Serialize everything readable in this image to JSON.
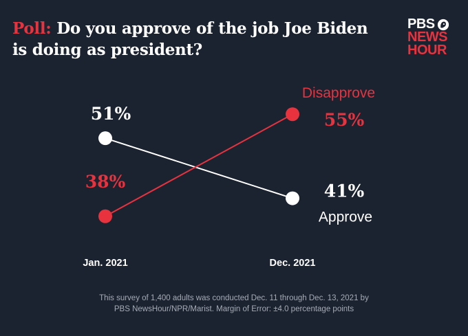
{
  "header": {
    "title_prefix": "Poll:",
    "title_rest": " Do you approve of the job Joe Biden is doing as president?"
  },
  "logo": {
    "line1": "PBS",
    "line2": "NEWS",
    "line3": "HOUR",
    "icon": "pbs-head-icon"
  },
  "footnote": {
    "line1": "This survey of 1,400 adults was conducted Dec. 11 through Dec. 13, 2021 by",
    "line2": "PBS NewsHour/NPR/Marist. Margin of Error: ±4.0 percentage points"
  },
  "colors": {
    "background": "#1b2230",
    "disapprove": "#e8333f",
    "approve": "#ffffff"
  },
  "chart_data": {
    "type": "line",
    "categories": [
      "Jan. 2021",
      "Dec. 2021"
    ],
    "series": [
      {
        "name": "Approve",
        "values": [
          51,
          41
        ],
        "labels": [
          "51%",
          "41%"
        ],
        "color": "#ffffff"
      },
      {
        "name": "Disapprove",
        "values": [
          38,
          55
        ],
        "labels": [
          "38%",
          "55%"
        ],
        "color": "#e8333f"
      }
    ],
    "ylim": [
      35,
      58
    ],
    "grid": false,
    "title": "",
    "xlabel": "",
    "ylabel": ""
  }
}
